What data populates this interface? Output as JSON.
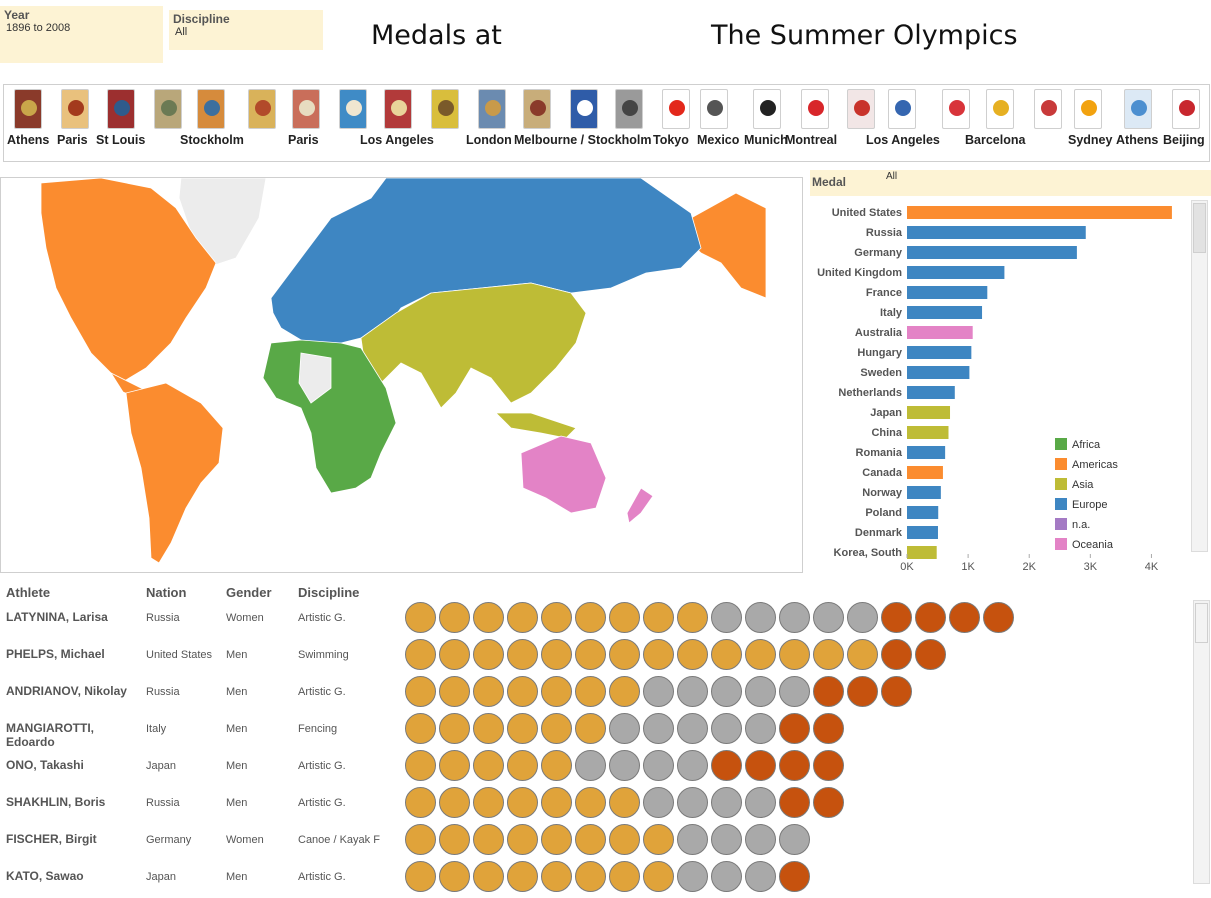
{
  "filters": {
    "year": {
      "label": "Year",
      "value": "1896 to 2008"
    },
    "discipline": {
      "label": "Discipline",
      "value": "All"
    },
    "medal": {
      "label": "Medal",
      "value": "All"
    }
  },
  "title": {
    "part1": "Medals at",
    "part2": "The Summer Olympics"
  },
  "timeline": {
    "editions": [
      {
        "city": "Athens",
        "color": "#8a3a2a",
        "emblem": "#c9a64a"
      },
      {
        "city": "Paris",
        "color": "#e9c17d",
        "emblem": "#a33a1d"
      },
      {
        "city": "St Louis",
        "color": "#9c2f2f",
        "emblem": "#2f5b8c"
      },
      {
        "city": "",
        "color": "#b9a77a",
        "emblem": "#6b7a54"
      },
      {
        "city": "Stockholm",
        "color": "#d68b3c",
        "emblem": "#3d6f9e"
      },
      {
        "city": "",
        "color": "#d9b25a",
        "emblem": "#b24a2a"
      },
      {
        "city": "Paris",
        "color": "#c96e5a",
        "emblem": "#e7dcc0"
      },
      {
        "city": "",
        "color": "#3f8bc6",
        "emblem": "#f0e6d0"
      },
      {
        "city": "Los Angeles",
        "color": "#b23a3a",
        "emblem": "#e9d49a"
      },
      {
        "city": "",
        "color": "#d9be3c",
        "emblem": "#7a5a2a"
      },
      {
        "city": "London",
        "color": "#6b8bb0",
        "emblem": "#c89a4a"
      },
      {
        "city": "Melbourne / Stockholm",
        "color": "#c8ad7a",
        "emblem": "#8a3a2a"
      },
      {
        "city": "",
        "color": "#2f5ca8",
        "emblem": "#ffffff"
      },
      {
        "city": "",
        "color": "#9a9a9a",
        "emblem": "#444444"
      },
      {
        "city": "Tokyo",
        "color": "#ffffff",
        "emblem": "#e3281b"
      },
      {
        "city": "Mexico",
        "color": "#ffffff",
        "emblem": "#555555"
      },
      {
        "city": "Munich",
        "color": "#ffffff",
        "emblem": "#222222"
      },
      {
        "city": "Montreal",
        "color": "#ffffff",
        "emblem": "#d8262a"
      },
      {
        "city": "",
        "color": "#f2e6e6",
        "emblem": "#c8332b"
      },
      {
        "city": "Los Angeles",
        "color": "#ffffff",
        "emblem": "#3566b0"
      },
      {
        "city": "",
        "color": "#ffffff",
        "emblem": "#d8343a"
      },
      {
        "city": "Barcelona",
        "color": "#ffffff",
        "emblem": "#e6b022"
      },
      {
        "city": "",
        "color": "#ffffff",
        "emblem": "#c83a3a"
      },
      {
        "city": "Sydney",
        "color": "#ffffff",
        "emblem": "#f2a20f"
      },
      {
        "city": "Athens",
        "color": "#dce9f5",
        "emblem": "#4c8fd0"
      },
      {
        "city": "Beijing",
        "color": "#ffffff",
        "emblem": "#c8272e"
      }
    ]
  },
  "region_colors": {
    "Africa": "#59a947",
    "Americas": "#fb8c2f",
    "Asia": "#bebc36",
    "Europe": "#3e86c2",
    "n.a.": "#a47ac4",
    "Oceania": "#e383c6",
    "no_data": "#ececec"
  },
  "chart_data": {
    "type": "bar",
    "orientation": "horizontal",
    "categories": [
      "United States",
      "Russia",
      "Germany",
      "United Kingdom",
      "France",
      "Italy",
      "Australia",
      "Hungary",
      "Sweden",
      "Netherlands",
      "Japan",
      "China",
      "Romania",
      "Canada",
      "Norway",
      "Poland",
      "Denmark",
      "Korea, South"
    ],
    "values": [
      4335,
      2925,
      2780,
      1594,
      1314,
      1228,
      1075,
      1053,
      1021,
      782,
      704,
      679,
      624,
      588,
      554,
      511,
      507,
      486
    ],
    "regions": [
      "Americas",
      "Europe",
      "Europe",
      "Europe",
      "Europe",
      "Europe",
      "Oceania",
      "Europe",
      "Europe",
      "Europe",
      "Asia",
      "Asia",
      "Europe",
      "Americas",
      "Europe",
      "Europe",
      "Europe",
      "Asia"
    ],
    "x_ticks": [
      "0K",
      "1K",
      "2K",
      "3K",
      "4K"
    ],
    "xlim": [
      0,
      4500
    ],
    "legend": {
      "position": "bottom-right",
      "entries": [
        "Africa",
        "Americas",
        "Asia",
        "Europe",
        "n.a.",
        "Oceania"
      ]
    }
  },
  "athletes": {
    "headers": {
      "athlete": "Athlete",
      "nation": "Nation",
      "gender": "Gender",
      "discipline": "Discipline"
    },
    "medal_colors": {
      "gold": "#e0a33a",
      "silver": "#a9a9a9",
      "bronze": "#c6520e"
    },
    "rows": [
      {
        "name": "LATYNINA, Larisa",
        "nation": "Russia",
        "gender": "Women",
        "discipline": "Artistic G.",
        "gold": 9,
        "silver": 5,
        "bronze": 4
      },
      {
        "name": "PHELPS, Michael",
        "nation": "United States",
        "gender": "Men",
        "discipline": "Swimming",
        "gold": 14,
        "silver": 0,
        "bronze": 2
      },
      {
        "name": "ANDRIANOV, Nikolay",
        "nation": "Russia",
        "gender": "Men",
        "discipline": "Artistic G.",
        "gold": 7,
        "silver": 5,
        "bronze": 3
      },
      {
        "name": "MANGIAROTTI, Edoardo",
        "nation": "Italy",
        "gender": "Men",
        "discipline": "Fencing",
        "gold": 6,
        "silver": 5,
        "bronze": 2
      },
      {
        "name": "ONO, Takashi",
        "nation": "Japan",
        "gender": "Men",
        "discipline": "Artistic G.",
        "gold": 5,
        "silver": 4,
        "bronze": 4
      },
      {
        "name": "SHAKHLIN, Boris",
        "nation": "Russia",
        "gender": "Men",
        "discipline": "Artistic G.",
        "gold": 7,
        "silver": 4,
        "bronze": 2
      },
      {
        "name": "FISCHER, Birgit",
        "nation": "Germany",
        "gender": "Women",
        "discipline": "Canoe / Kayak F",
        "gold": 8,
        "silver": 4,
        "bronze": 0
      },
      {
        "name": "KATO, Sawao",
        "nation": "Japan",
        "gender": "Men",
        "discipline": "Artistic G.",
        "gold": 8,
        "silver": 3,
        "bronze": 1
      }
    ]
  }
}
